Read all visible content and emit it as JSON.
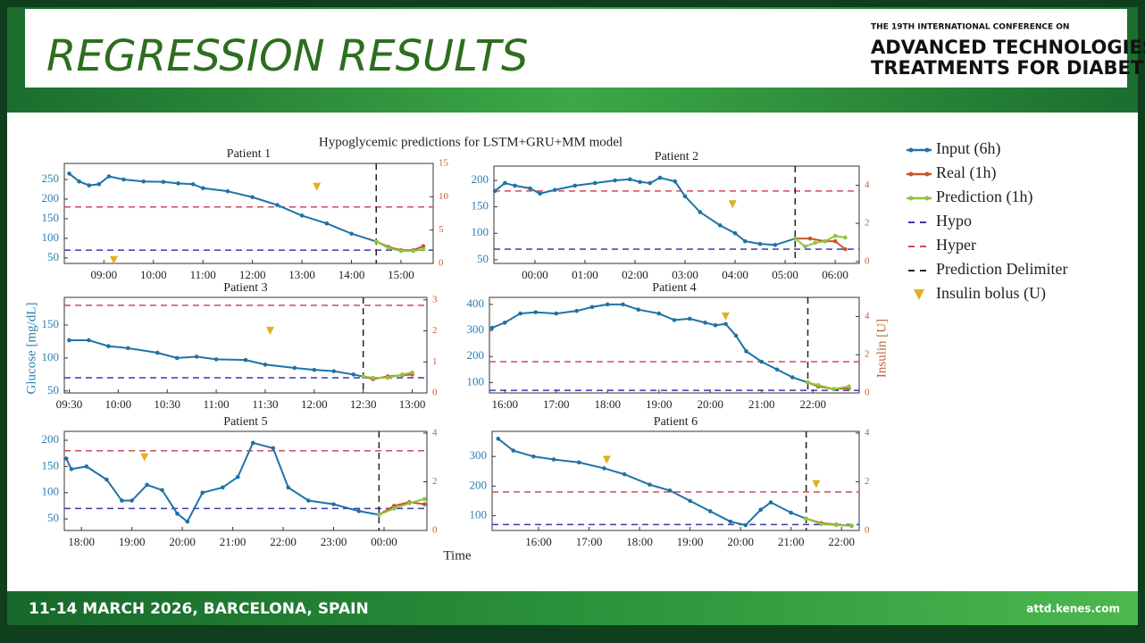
{
  "header": {
    "title": "REGRESSION RESULTS",
    "conference_line": "THE 19TH INTERNATIONAL CONFERENCE ON",
    "conference_name_1": "ADVANCED TECHNOLOGIES &",
    "conference_name_2": "TREATMENTS FOR DIABETES"
  },
  "footer": {
    "dates": "11-14 MARCH 2026, BARCELONA, SPAIN",
    "url": "attd.kenes.com"
  },
  "figure": {
    "title": "Hypoglycemic predictions for LSTM+GRU+MM model",
    "xlabel": "Time",
    "ylabel": "Glucose [mg/dL]",
    "y2label": "Insulin [U]"
  },
  "chart_data": [
    {
      "type": "line",
      "title": "Patient 1",
      "xlim": [
        8.2,
        15.65
      ],
      "xticks": [
        {
          "value": 9,
          "label": "09:00"
        },
        {
          "value": 10,
          "label": "10:00"
        },
        {
          "value": 11,
          "label": "11:00"
        },
        {
          "value": 12,
          "label": "12:00"
        },
        {
          "value": 13,
          "label": "13:00"
        },
        {
          "value": 14,
          "label": "14:00"
        },
        {
          "value": 15,
          "label": "15:00"
        }
      ],
      "ylim": [
        36,
        291
      ],
      "yticks": [
        50,
        100,
        150,
        200,
        250
      ],
      "y2lim": [
        0,
        15
      ],
      "y2ticks": [
        0,
        5,
        10,
        15
      ],
      "series": [
        {
          "name": "Input (6h)",
          "color": "#1f72a8",
          "x": [
            8.3,
            8.5,
            8.7,
            8.9,
            9.1,
            9.4,
            9.8,
            10.2,
            10.5,
            10.8,
            11.0,
            11.5,
            12.0,
            12.5,
            13.0,
            13.5,
            14.0,
            14.5
          ],
          "values": [
            265,
            245,
            235,
            238,
            258,
            250,
            245,
            244,
            240,
            238,
            228,
            220,
            205,
            185,
            158,
            138,
            112,
            92
          ]
        },
        {
          "name": "Real (1h)",
          "color": "#c8552a",
          "x": [
            14.5,
            14.75,
            15.0,
            15.25,
            15.45
          ],
          "values": [
            92,
            78,
            70,
            70,
            80
          ]
        },
        {
          "name": "Prediction (1h)",
          "color": "#8cc63f",
          "x": [
            14.5,
            14.75,
            15.0,
            15.25,
            15.45
          ],
          "values": [
            92,
            75,
            68,
            68,
            72
          ]
        }
      ],
      "hlines": [
        {
          "name": "Hypo",
          "value": 70,
          "color": "#3a3ab0"
        },
        {
          "name": "Hyper",
          "value": 180,
          "color": "#d04a5a"
        }
      ],
      "vline": {
        "name": "Prediction Delimiter",
        "value": 14.5,
        "color": "#222222"
      },
      "bolus": {
        "name": "Insulin bolus (U)",
        "color": "#e0b020",
        "axis": "y2",
        "x": [
          9.2,
          13.3
        ],
        "values": [
          0.5,
          11.5
        ]
      }
    },
    {
      "type": "line",
      "title": "Patient 2",
      "xlim": [
        -0.82,
        6.48
      ],
      "xticks": [
        {
          "value": 0,
          "label": "00:00"
        },
        {
          "value": 1,
          "label": "01:00"
        },
        {
          "value": 2,
          "label": "02:00"
        },
        {
          "value": 3,
          "label": "03:00"
        },
        {
          "value": 4,
          "label": "04:00"
        },
        {
          "value": 5,
          "label": "05:00"
        },
        {
          "value": 6,
          "label": "06:00"
        }
      ],
      "ylim": [
        43,
        227
      ],
      "yticks": [
        50,
        100,
        150,
        200
      ],
      "y2lim": [
        -0.1,
        5
      ],
      "y2ticks": [
        0,
        2,
        4
      ],
      "series": [
        {
          "color": "#1f72a8",
          "x": [
            -0.8,
            -0.6,
            -0.4,
            -0.1,
            0.1,
            0.4,
            0.8,
            1.2,
            1.6,
            1.9,
            2.1,
            2.3,
            2.5,
            2.8,
            3.0,
            3.3,
            3.7,
            4.0,
            4.2,
            4.5,
            4.8,
            5.2
          ],
          "values": [
            180,
            195,
            190,
            185,
            175,
            182,
            190,
            195,
            200,
            202,
            197,
            195,
            205,
            198,
            170,
            140,
            115,
            100,
            85,
            80,
            78,
            90
          ]
        },
        {
          "color": "#c8552a",
          "x": [
            5.2,
            5.5,
            5.8,
            6.0,
            6.2
          ],
          "values": [
            90,
            90,
            85,
            85,
            70
          ]
        },
        {
          "color": "#8cc63f",
          "x": [
            5.2,
            5.4,
            5.6,
            5.8,
            6.0,
            6.2
          ],
          "values": [
            90,
            75,
            82,
            85,
            95,
            92
          ]
        }
      ],
      "hlines": [
        {
          "value": 70,
          "color": "#3a3ab0"
        },
        {
          "value": 180,
          "color": "#d04a5a"
        }
      ],
      "vline": {
        "value": 5.2,
        "color": "#222222"
      },
      "bolus": {
        "color": "#e0b020",
        "axis": "y2",
        "x": [
          3.95
        ],
        "values": [
          3.0
        ]
      }
    },
    {
      "type": "line",
      "title": "Patient 3",
      "xlim": [
        9.45,
        13.15
      ],
      "xticks": [
        {
          "value": 9.5,
          "label": "09:30"
        },
        {
          "value": 10,
          "label": "10:00"
        },
        {
          "value": 10.5,
          "label": "10:30"
        },
        {
          "value": 11,
          "label": "11:00"
        },
        {
          "value": 11.5,
          "label": "11:30"
        },
        {
          "value": 12,
          "label": "12:00"
        },
        {
          "value": 12.5,
          "label": "12:30"
        },
        {
          "value": 13,
          "label": "13:00"
        }
      ],
      "ylim": [
        47,
        192
      ],
      "yticks": [
        50,
        100,
        150
      ],
      "y2lim": [
        0,
        3.08
      ],
      "y2ticks": [
        0,
        1,
        2,
        3
      ],
      "series": [
        {
          "color": "#1f72a8",
          "x": [
            9.5,
            9.7,
            9.9,
            10.1,
            10.4,
            10.6,
            10.8,
            11.0,
            11.3,
            11.5,
            11.8,
            12.0,
            12.2,
            12.4,
            12.5
          ],
          "values": [
            127,
            127,
            118,
            115,
            108,
            100,
            102,
            98,
            97,
            90,
            85,
            82,
            80,
            75,
            72
          ]
        },
        {
          "color": "#c8552a",
          "x": [
            12.5,
            12.6,
            12.75,
            12.9,
            13.0
          ],
          "values": [
            72,
            68,
            72,
            74,
            75
          ]
        },
        {
          "color": "#8cc63f",
          "x": [
            12.5,
            12.6,
            12.75,
            12.9,
            13.0
          ],
          "values": [
            72,
            70,
            70,
            75,
            78
          ]
        }
      ],
      "hlines": [
        {
          "value": 70,
          "color": "#3a3ab0"
        },
        {
          "value": 180,
          "color": "#d04a5a"
        }
      ],
      "vline": {
        "value": 12.5,
        "color": "#222222"
      },
      "bolus": {
        "color": "#e0b020",
        "axis": "y2",
        "x": [
          11.55
        ],
        "values": [
          2.0
        ]
      }
    },
    {
      "type": "line",
      "title": "Patient 4",
      "xlim": [
        15.7,
        22.9
      ],
      "xticks": [
        {
          "value": 16,
          "label": "16:00"
        },
        {
          "value": 17,
          "label": "17:00"
        },
        {
          "value": 18,
          "label": "18:00"
        },
        {
          "value": 19,
          "label": "19:00"
        },
        {
          "value": 20,
          "label": "20:00"
        },
        {
          "value": 21,
          "label": "21:00"
        },
        {
          "value": 22,
          "label": "22:00"
        }
      ],
      "ylim": [
        60,
        427
      ],
      "yticks": [
        100,
        200,
        300,
        400
      ],
      "y2lim": [
        0,
        5
      ],
      "y2ticks": [
        0,
        2,
        4
      ],
      "series": [
        {
          "color": "#1f72a8",
          "x": [
            15.75,
            16.0,
            16.3,
            16.6,
            17.0,
            17.4,
            17.7,
            18.0,
            18.3,
            18.6,
            19.0,
            19.3,
            19.6,
            19.9,
            20.1,
            20.3,
            20.5,
            20.7,
            21.0,
            21.3,
            21.6,
            21.9
          ],
          "values": [
            310,
            330,
            365,
            370,
            365,
            375,
            390,
            400,
            400,
            380,
            365,
            340,
            345,
            330,
            320,
            325,
            280,
            220,
            180,
            150,
            120,
            100
          ]
        },
        {
          "color": "#c8552a",
          "x": [
            21.9,
            22.1,
            22.4,
            22.7
          ],
          "values": [
            100,
            85,
            75,
            78
          ]
        },
        {
          "color": "#8cc63f",
          "x": [
            21.9,
            22.1,
            22.4,
            22.7
          ],
          "values": [
            100,
            90,
            75,
            85
          ]
        }
      ],
      "hlines": [
        {
          "value": 70,
          "color": "#3a3ab0"
        },
        {
          "value": 180,
          "color": "#d04a5a"
        }
      ],
      "vline": {
        "value": 21.9,
        "color": "#222222"
      },
      "bolus": {
        "color": "#e0b020",
        "axis": "y2",
        "x": [
          20.3
        ],
        "values": [
          4.0
        ]
      }
    },
    {
      "type": "line",
      "title": "Patient 5",
      "xlim": [
        17.66,
        24.85
      ],
      "xticks": [
        {
          "value": 18,
          "label": "18:00"
        },
        {
          "value": 19,
          "label": "19:00"
        },
        {
          "value": 20,
          "label": "20:00"
        },
        {
          "value": 21,
          "label": "21:00"
        },
        {
          "value": 22,
          "label": "22:00"
        },
        {
          "value": 23,
          "label": "23:00"
        },
        {
          "value": 24,
          "label": "00:00"
        }
      ],
      "ylim": [
        28,
        217
      ],
      "yticks": [
        50,
        100,
        150,
        200
      ],
      "y2lim": [
        0,
        4.07
      ],
      "y2ticks": [
        0,
        2,
        4
      ],
      "series": [
        {
          "color": "#1f72a8",
          "x": [
            17.7,
            17.8,
            18.1,
            18.5,
            18.8,
            19.0,
            19.3,
            19.6,
            19.9,
            20.1,
            20.4,
            20.8,
            21.1,
            21.4,
            21.8,
            22.1,
            22.5,
            23.0,
            23.5,
            23.9
          ],
          "values": [
            165,
            145,
            150,
            125,
            85,
            85,
            115,
            105,
            60,
            45,
            100,
            110,
            130,
            195,
            185,
            110,
            85,
            78,
            65,
            58
          ]
        },
        {
          "color": "#c8552a",
          "x": [
            23.9,
            24.2,
            24.5,
            24.8
          ],
          "values": [
            58,
            75,
            82,
            78
          ]
        },
        {
          "color": "#8cc63f",
          "x": [
            23.9,
            24.2,
            24.5,
            24.8
          ],
          "values": [
            58,
            70,
            80,
            88
          ]
        }
      ],
      "hlines": [
        {
          "value": 70,
          "color": "#3a3ab0"
        },
        {
          "value": 180,
          "color": "#d04a5a"
        }
      ],
      "vline": {
        "value": 23.9,
        "color": "#222222"
      },
      "bolus": {
        "color": "#e0b020",
        "axis": "y2",
        "x": [
          19.25
        ],
        "values": [
          3.0
        ]
      }
    },
    {
      "type": "line",
      "title": "Patient 6",
      "xlim": [
        15.08,
        22.35
      ],
      "xticks": [
        {
          "value": 16,
          "label": "16:00"
        },
        {
          "value": 17,
          "label": "17:00"
        },
        {
          "value": 18,
          "label": "18:00"
        },
        {
          "value": 19,
          "label": "19:00"
        },
        {
          "value": 20,
          "label": "20:00"
        },
        {
          "value": 21,
          "label": "21:00"
        },
        {
          "value": 22,
          "label": "22:00"
        }
      ],
      "ylim": [
        50,
        385
      ],
      "yticks": [
        100,
        200,
        300
      ],
      "y2lim": [
        0,
        4.07
      ],
      "y2ticks": [
        0,
        2,
        4
      ],
      "series": [
        {
          "color": "#1f72a8",
          "x": [
            15.2,
            15.5,
            15.9,
            16.3,
            16.8,
            17.3,
            17.7,
            18.2,
            18.6,
            19.0,
            19.4,
            19.8,
            20.1,
            20.4,
            20.6,
            21.0,
            21.3
          ],
          "values": [
            360,
            320,
            300,
            290,
            280,
            260,
            240,
            205,
            185,
            150,
            115,
            80,
            68,
            120,
            145,
            110,
            90
          ]
        },
        {
          "color": "#c8552a",
          "x": [
            21.3,
            21.6,
            21.9,
            22.2
          ],
          "values": [
            90,
            75,
            70,
            65
          ]
        },
        {
          "color": "#8cc63f",
          "x": [
            21.3,
            21.6,
            21.9,
            22.2
          ],
          "values": [
            90,
            72,
            68,
            66
          ]
        }
      ],
      "hlines": [
        {
          "value": 70,
          "color": "#3a3ab0"
        },
        {
          "value": 180,
          "color": "#d04a5a"
        }
      ],
      "vline": {
        "value": 21.3,
        "color": "#222222"
      },
      "bolus": {
        "color": "#e0b020",
        "axis": "y2",
        "x": [
          17.35,
          21.5
        ],
        "values": [
          2.9,
          1.9
        ]
      }
    }
  ]
}
